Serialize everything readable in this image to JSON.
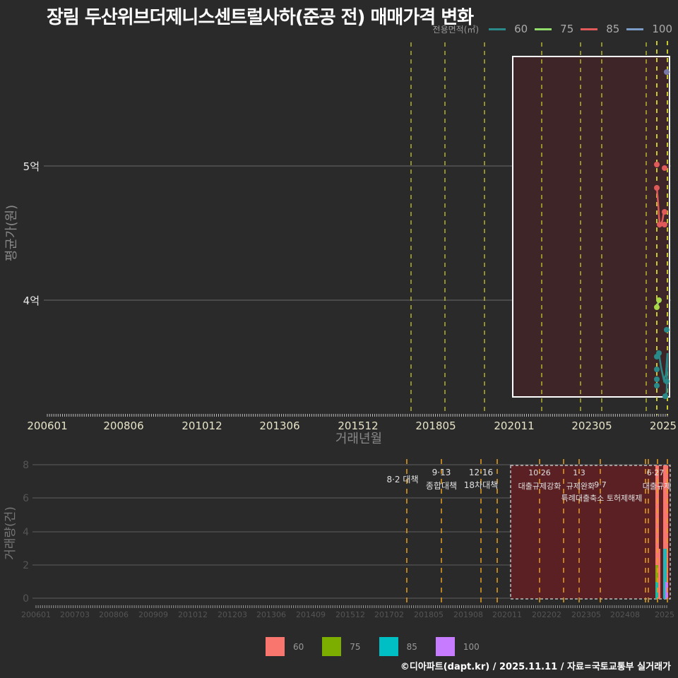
{
  "title": "장림 두산위브더제니스센트럴사하(준공 전) 매매가격 변화",
  "legend_top": {
    "title": "전용면적(㎡)",
    "items": [
      {
        "label": "60",
        "color": "#2a8a8a"
      },
      {
        "label": "75",
        "color": "#8fdc6a"
      },
      {
        "label": "85",
        "color": "#e05a5a"
      },
      {
        "label": "100",
        "color": "#7a9cc6"
      }
    ]
  },
  "legend_bottom": {
    "items": [
      {
        "label": "60",
        "color": "#f8766d"
      },
      {
        "label": "75",
        "color": "#7cae00"
      },
      {
        "label": "85",
        "color": "#00bfc4"
      },
      {
        "label": "100",
        "color": "#c77cff"
      }
    ]
  },
  "credit": "©디아파트(dapt.kr) / 2025.11.11 / 자료=국토교통부 실거래가",
  "chart_data": [
    {
      "type": "line",
      "title": "장림 두산위브더제니스센트럴사하(준공 전) 매매가격 변화",
      "xlabel": "거래년월",
      "ylabel": "평균가(원)",
      "x_tick_labels": [
        "200601",
        "200806",
        "201012",
        "201306",
        "201512",
        "201805",
        "202011",
        "202305",
        "2025"
      ],
      "y_tick_labels": [
        "4억",
        "5억"
      ],
      "ylim": [
        330000000,
        580000000
      ],
      "grid": true,
      "legend_position": "top-right",
      "highlight_box": {
        "from": "202011",
        "to": "202511"
      },
      "series": [
        {
          "name": "60",
          "points": [
            [
              "202507",
              362000000
            ],
            [
              "202507",
              359000000
            ],
            [
              "202507",
              354000000
            ],
            [
              "202507",
              350000000
            ],
            [
              "202508",
              362000000
            ],
            [
              "202510",
              358000000
            ],
            [
              "202511",
              352000000
            ],
            [
              "202511",
              378000000
            ],
            [
              "202511",
              346000000
            ]
          ]
        },
        {
          "name": "75",
          "points": [
            [
              "202507",
              400000000
            ],
            [
              "202507",
              395000000
            ]
          ]
        },
        {
          "name": "85",
          "points": [
            [
              "202507",
              502000000
            ],
            [
              "202507",
              486000000
            ],
            [
              "202508",
              456000000
            ],
            [
              "202510",
              465000000
            ],
            [
              "202510",
              456000000
            ],
            [
              "202511",
              497000000
            ]
          ]
        },
        {
          "name": "100",
          "points": [
            [
              "202511",
              571000000
            ]
          ]
        }
      ]
    },
    {
      "type": "bar",
      "title": "",
      "xlabel": "",
      "ylabel": "거래량(건)",
      "x_tick_labels": [
        "200601",
        "200703",
        "200806",
        "200909",
        "201012",
        "201203",
        "201306",
        "201409",
        "201512",
        "201702",
        "201805",
        "201908",
        "202011",
        "202202",
        "202305",
        "202408",
        "2025"
      ],
      "y_tick_labels": [
        "0",
        "2",
        "4",
        "6",
        "8"
      ],
      "ylim": [
        0,
        8
      ],
      "grid": true,
      "stacked": true,
      "series": [
        {
          "name": "60",
          "values_by_month": {
            "202507": 8,
            "202510": 3,
            "202511": 8
          }
        },
        {
          "name": "75",
          "values_by_month": {
            "202507": 2
          }
        },
        {
          "name": "85",
          "values_by_month": {
            "202507": 1,
            "202510": 3,
            "202511": 3
          }
        },
        {
          "name": "100",
          "values_by_month": {
            "202511": 1
          }
        }
      ],
      "annotations": [
        {
          "date": "8·2",
          "label": "대책"
        },
        {
          "date": "9·13",
          "label": "종합대책"
        },
        {
          "date": "12·16",
          "label": "18차대책"
        },
        {
          "date": "10·26",
          "label": "대출규제강화"
        },
        {
          "date": "1·3",
          "label": "규제완화"
        },
        {
          "date": "9·7",
          "label": "특례대출축소"
        },
        {
          "date": "",
          "label": "토허제해제"
        },
        {
          "date": "6·27",
          "label": "대출규제"
        },
        {
          "date": "10·1",
          "label": ""
        }
      ]
    }
  ],
  "axis": {
    "top_x_label": "거래년월",
    "top_y_label": "평균가(원)",
    "bottom_y_label": "거래량(건)"
  }
}
